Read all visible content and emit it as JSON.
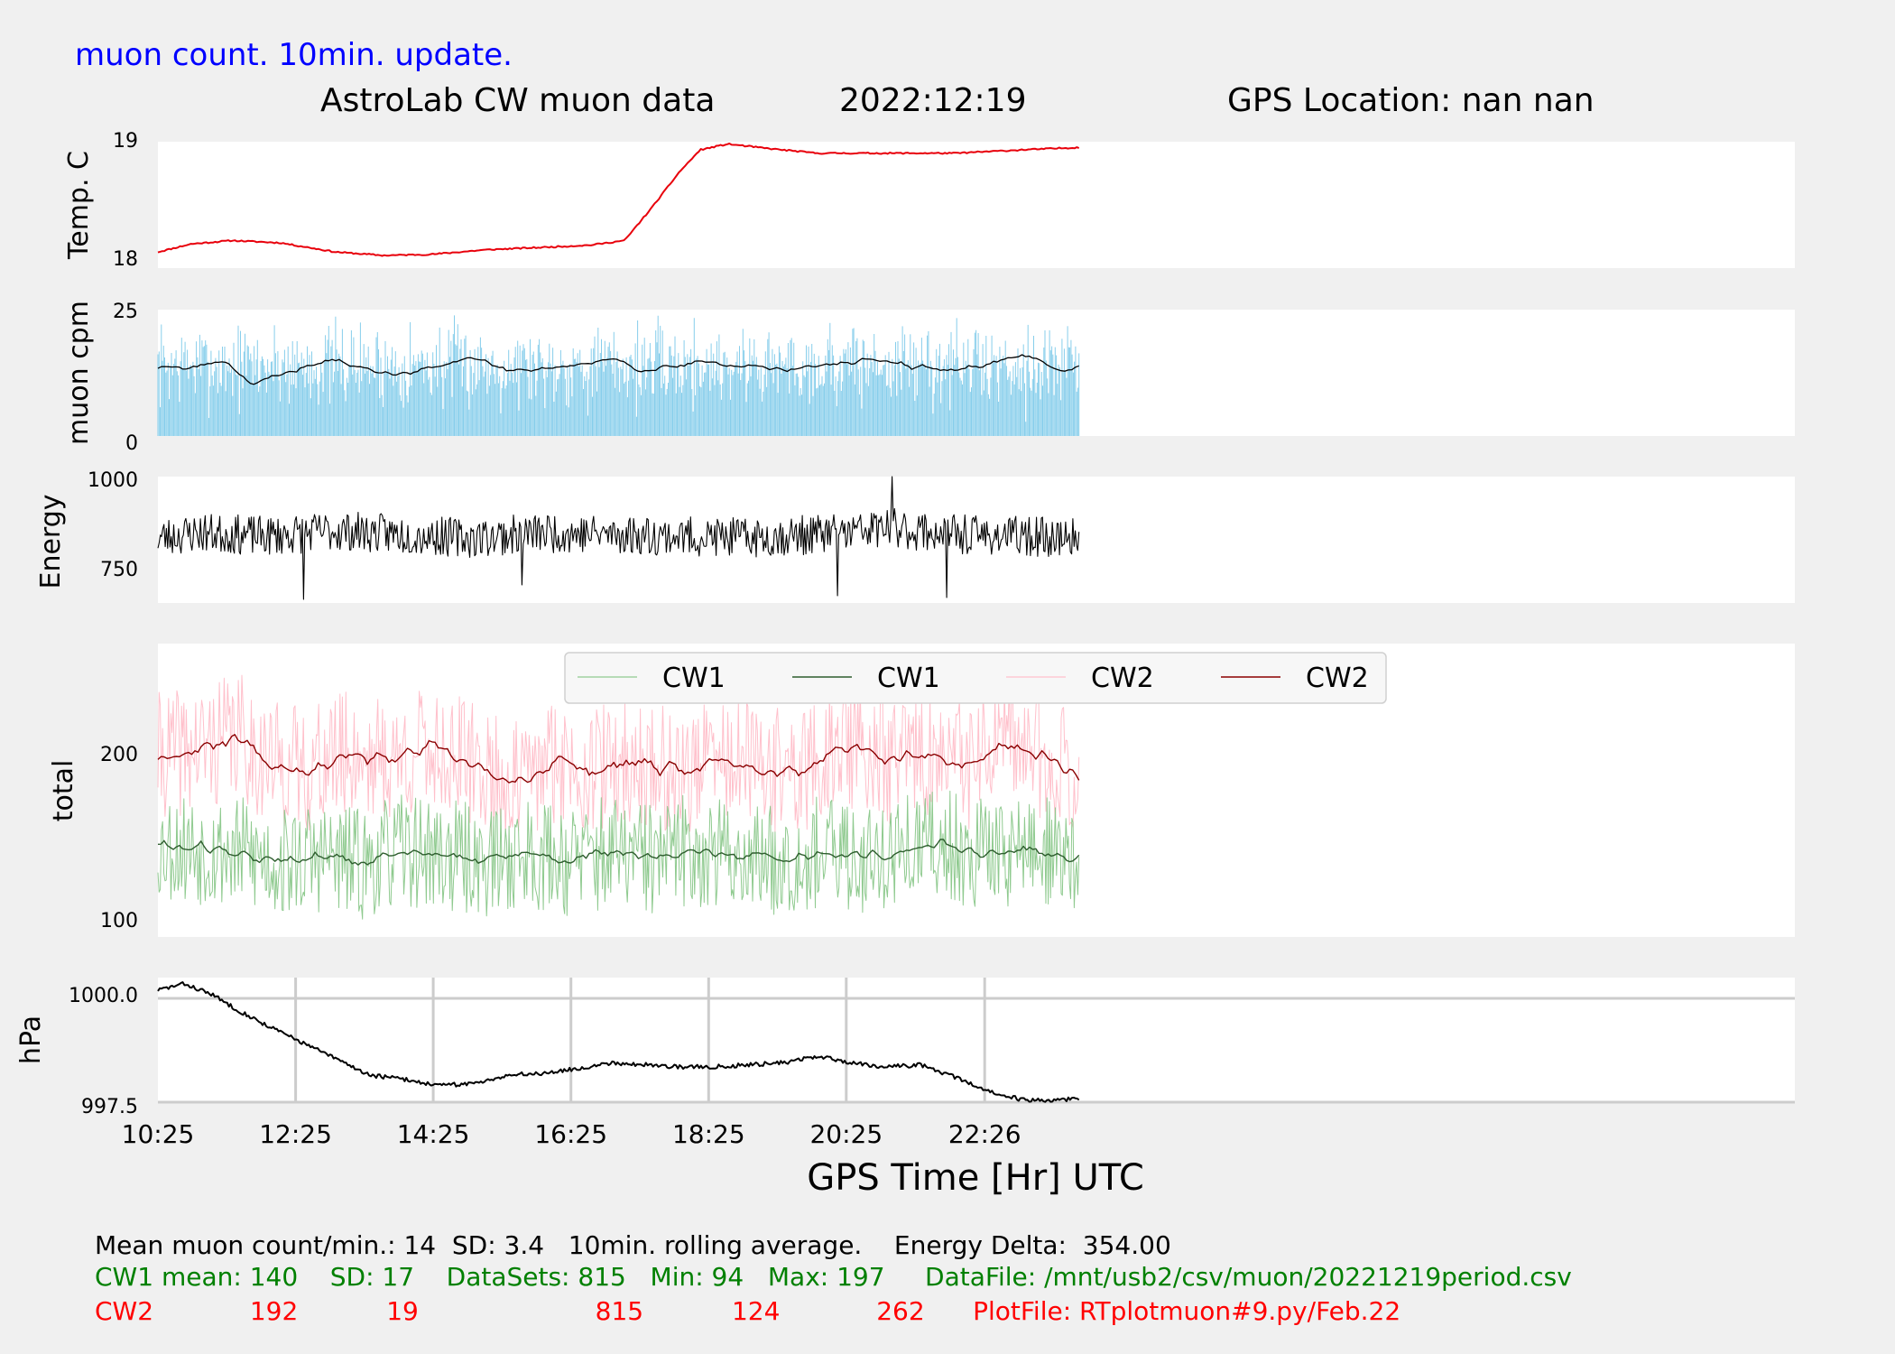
{
  "header": {
    "update_note": "muon count.  10min. update.",
    "title_left": "AstroLab CW muon data",
    "title_date": "2022:12:19",
    "title_gps": "GPS Location: nan   nan"
  },
  "colors": {
    "background": "#f0f0f0",
    "panel": "#ffffff",
    "temperature": "#e8000b",
    "muon_bars": "#87ceeb",
    "muon_avg": "#000000",
    "energy": "#000000",
    "cw1_raw": "#8fca8f",
    "cw1_avg": "#2e5e2e",
    "cw2_raw": "#ffc0cb",
    "cw2_avg": "#8b0000",
    "pressure": "#000000",
    "grid": "#cccccc",
    "stats_black": "#000000",
    "stats_green": "#008000",
    "stats_red": "#ff0000",
    "update_note": "#0000ff"
  },
  "chart_data": [
    {
      "id": "temperature",
      "type": "line",
      "ylabel": "Temp. C",
      "yticks": [
        "19",
        "18"
      ],
      "ylim": [
        17.92,
        19.02
      ],
      "xlim": [
        10.42,
        34.2
      ],
      "series": [
        {
          "x": [
            10.42,
            10.9,
            11.5,
            12.2,
            13.0,
            13.7,
            14.4,
            15.2,
            16.0,
            16.7,
            17.2,
            17.6,
            18.0,
            18.3,
            18.7,
            19.3,
            20.0,
            21.0,
            22.0,
            23.0,
            23.8
          ],
          "y": [
            18.06,
            18.13,
            18.16,
            18.14,
            18.06,
            18.03,
            18.04,
            18.08,
            18.1,
            18.12,
            18.16,
            18.45,
            18.76,
            18.95,
            19.0,
            18.96,
            18.92,
            18.92,
            18.92,
            18.95,
            18.97
          ]
        }
      ]
    },
    {
      "id": "muon_cpm",
      "type": "bar",
      "ylabel": "muon cpm",
      "yticks": [
        "25",
        "0"
      ],
      "ylim": [
        0,
        25
      ],
      "xlim": [
        10.42,
        34.2
      ],
      "series": [
        {
          "name": "",
          "x": [
            10.42,
            10.9,
            11.4,
            11.8,
            12.2,
            12.6,
            13.0,
            13.5,
            14.0,
            14.5,
            15.0,
            15.5,
            16.0,
            16.5,
            17.0,
            17.5,
            18.0,
            18.5,
            19.0,
            19.5,
            20.0,
            20.5,
            21.0,
            21.5,
            22.0,
            22.5,
            23.0,
            23.5,
            23.8
          ],
          "y": [
            14,
            13.5,
            15,
            10,
            12,
            14,
            15,
            13,
            12,
            14,
            15.5,
            13,
            13.5,
            14,
            15,
            13,
            14,
            14.5,
            14,
            13,
            14,
            14.5,
            15,
            13.5,
            13,
            14.5,
            16,
            13,
            13.5
          ]
        }
      ],
      "bar_stats": {
        "mean": 14,
        "sd": 3.4,
        "count": 815
      }
    },
    {
      "id": "energy",
      "type": "line",
      "ylabel": "Energy",
      "yticks": [
        "1000",
        "750"
      ],
      "ylim": [
        650,
        1000
      ],
      "xlim": [
        10.42,
        34.2
      ],
      "series": [
        {
          "name": "",
          "x": [
            10.42,
            11.0,
            12.0,
            13.0,
            14.0,
            15.0,
            16.0,
            17.0,
            18.0,
            19.0,
            20.0,
            20.5,
            21.0,
            21.5,
            22.0,
            23.0,
            23.8
          ],
          "y": [
            830,
            845,
            835,
            850,
            840,
            830,
            845,
            840,
            835,
            830,
            840,
            845,
            860,
            850,
            840,
            835,
            830
          ]
        }
      ],
      "energy_delta": 354.0,
      "energy_extremes": {
        "max": 1000,
        "min": 660
      }
    },
    {
      "id": "total",
      "type": "line",
      "ylabel": "total",
      "yticks": [
        "200",
        "100"
      ],
      "ylim": [
        90,
        265
      ],
      "xlim": [
        10.42,
        34.2
      ],
      "legend": {
        "position": "top-center",
        "entries": [
          "CW1",
          "CW1",
          "CW2",
          "CW2"
        ]
      },
      "series": [
        {
          "name": "CW1",
          "role": "raw",
          "mean": 140,
          "sd": 17,
          "min": 94,
          "max": 197
        },
        {
          "name": "CW1",
          "role": "avg",
          "x": [
            10.42,
            11.0,
            11.6,
            12.2,
            12.8,
            13.4,
            14.0,
            14.6,
            15.2,
            15.8,
            16.4,
            17.0,
            17.6,
            18.2,
            18.8,
            19.4,
            20.0,
            20.6,
            21.2,
            21.8,
            22.4,
            23.0,
            23.8
          ],
          "y": [
            145,
            143,
            140,
            134,
            138,
            133,
            142,
            138,
            135,
            140,
            136,
            140,
            136,
            142,
            138,
            136,
            140,
            137,
            141,
            145,
            140,
            143,
            136
          ]
        },
        {
          "name": "CW2",
          "role": "raw",
          "mean": 192,
          "sd": 19,
          "min": 124,
          "max": 262
        },
        {
          "name": "CW2",
          "role": "avg",
          "x": [
            10.42,
            11.0,
            11.6,
            12.0,
            12.6,
            13.2,
            13.8,
            14.4,
            15.0,
            15.6,
            16.2,
            16.8,
            17.4,
            18.0,
            18.6,
            19.2,
            19.8,
            20.4,
            21.0,
            21.6,
            22.2,
            22.8,
            23.4,
            23.8
          ],
          "y": [
            198,
            202,
            210,
            195,
            190,
            200,
            195,
            203,
            192,
            180,
            195,
            190,
            193,
            188,
            196,
            190,
            188,
            205,
            195,
            198,
            192,
            205,
            196,
            188
          ]
        }
      ]
    },
    {
      "id": "pressure",
      "type": "line",
      "ylabel": "hPa",
      "yticks": [
        "1000.0",
        "997.5"
      ],
      "ylim": [
        997.5,
        1000.5
      ],
      "xlim": [
        10.42,
        34.2
      ],
      "xlabel": "GPS Time  [Hr] UTC",
      "xticks": [
        {
          "label": "10:25",
          "value": 10.42
        },
        {
          "label": "12:25",
          "value": 12.42
        },
        {
          "label": "14:25",
          "value": 14.42
        },
        {
          "label": "16:25",
          "value": 16.42
        },
        {
          "label": "18:25",
          "value": 18.42
        },
        {
          "label": "20:25",
          "value": 20.42
        },
        {
          "label": "22:26",
          "value": 22.43
        }
      ],
      "series": [
        {
          "name": "",
          "x": [
            10.42,
            10.8,
            11.2,
            11.6,
            12.0,
            12.5,
            13.0,
            13.5,
            14.0,
            14.5,
            15.0,
            15.5,
            16.0,
            16.5,
            17.0,
            17.5,
            18.0,
            18.5,
            19.0,
            19.5,
            20.0,
            20.5,
            21.0,
            21.5,
            22.0,
            22.5,
            23.0,
            23.5,
            23.8
          ],
          "y": [
            1000.2,
            1000.35,
            1000.1,
            999.7,
            999.35,
            998.95,
            998.55,
            998.15,
            998.05,
            997.9,
            997.95,
            998.15,
            998.2,
            998.3,
            998.45,
            998.4,
            998.35,
            998.35,
            998.4,
            998.45,
            998.6,
            998.45,
            998.35,
            998.4,
            998.1,
            997.75,
            997.55,
            997.55,
            997.6
          ]
        }
      ]
    }
  ],
  "stats": {
    "line1": "Mean muon count/min.: 14  SD: 3.4   10min. rolling average.    Energy Delta:  354.00",
    "line2": "CW1 mean: 140    SD: 17    DataSets: 815   Min: 94   Max: 197     DataFile: /mnt/usb2/csv/muon/20221219period.csv",
    "line3": "CW2            192           19                      815           124            262      PlotFile: RTplotmuon#9.py/Feb.22"
  }
}
